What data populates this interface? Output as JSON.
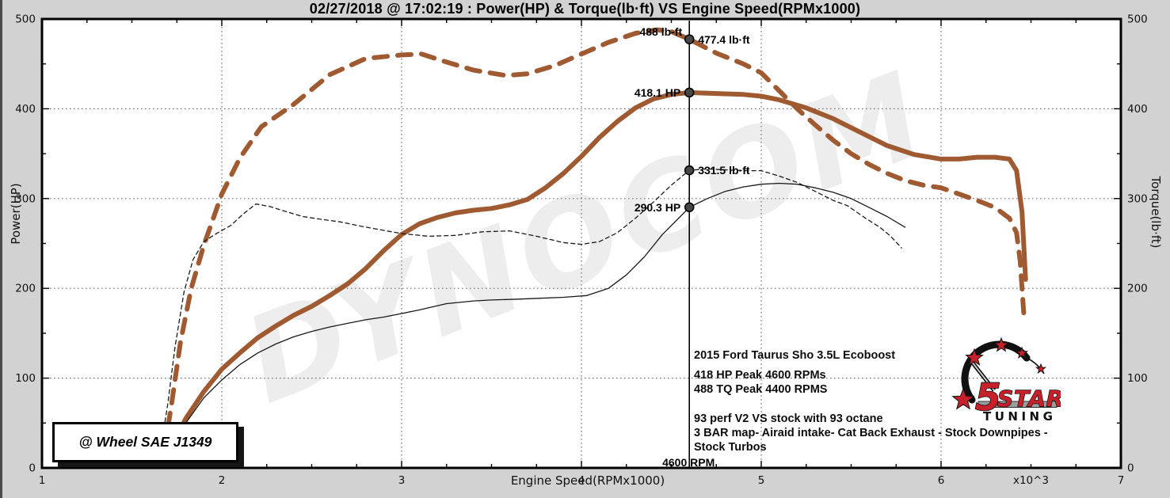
{
  "header": {
    "title": "02/27/2018 @ 17:02:19 : Power(HP) & Torque(lb·ft) VS Engine Speed(RPMx1000)"
  },
  "watermark": {
    "text": "DYNOCOM"
  },
  "wheel_box": {
    "label": "@ Wheel SAE J1349"
  },
  "info_block": {
    "lines": [
      "2015 Ford Taurus Sho 3.5L Ecoboost",
      "418 HP Peak  4600 RPMs",
      "488 TQ Peak  4400 RPMS",
      "93 perf V2  VS stock with 93 octane",
      "3 BAR map- Airaid intake- Cat Back Exhaust - Stock Downpipes -",
      "Stock Turbos"
    ]
  },
  "logo": {
    "digit": "5",
    "star_word": "STAR",
    "tuning": "TUNING",
    "red": "#c8202a"
  },
  "colors": {
    "tuned": "#a05a32",
    "stock": "#1a1a1a",
    "background": "#d2d2d2",
    "plot_bg": "#ffffff"
  },
  "chart_data": {
    "type": "line",
    "title": "02/27/2018 @ 17:02:19 : Power(HP) & Torque(lb·ft) VS Engine Speed(RPMx1000)",
    "xlabel": "Engine Speed(RPMx1000)",
    "ylabel_left": "Power(HP)",
    "ylabel_right": "Torque(lb·ft)",
    "xlim": [
      1,
      7
    ],
    "ylim": [
      0,
      500
    ],
    "x_ticks": [
      1,
      2,
      3,
      4,
      5,
      6,
      7
    ],
    "x_scale_note": "x10^3",
    "y_ticks": [
      0,
      100,
      200,
      300,
      400,
      500
    ],
    "x_grid": [
      2,
      3,
      4,
      5,
      6
    ],
    "y_grid": [
      100,
      200,
      300,
      400
    ],
    "grid": "dotted",
    "legend_position": "none",
    "cursor_rpm": 4.6,
    "series": [
      {
        "name": "tuned-torque-lbft",
        "style": "dashed",
        "color": "#a05a32",
        "width": 6,
        "x": [
          1.68,
          1.72,
          1.77,
          1.83,
          1.9,
          2.0,
          2.1,
          2.22,
          2.4,
          2.6,
          2.8,
          3.0,
          3.11,
          3.25,
          3.4,
          3.58,
          3.7,
          3.85,
          4.0,
          4.15,
          4.3,
          4.42,
          4.5,
          4.6,
          4.75,
          4.9,
          5.0,
          5.1,
          5.2,
          5.3,
          5.4,
          5.5,
          5.6,
          5.7,
          5.8,
          5.9,
          6.0,
          6.1,
          6.2,
          6.3,
          6.38,
          6.42,
          6.44,
          6.46
        ],
        "y": [
          20,
          70,
          140,
          200,
          248,
          305,
          345,
          380,
          405,
          438,
          456,
          460,
          461,
          452,
          443,
          437,
          439,
          448,
          461,
          474,
          484,
          488,
          486,
          477.4,
          462,
          450,
          440,
          420,
          400,
          382,
          365,
          350,
          338,
          328,
          320,
          315,
          312,
          305,
          298,
          290,
          278,
          262,
          230,
          172
        ]
      },
      {
        "name": "tuned-power-hp",
        "style": "solid",
        "color": "#a05a32",
        "width": 6,
        "x": [
          1.73,
          1.8,
          1.9,
          2.0,
          2.1,
          2.2,
          2.3,
          2.4,
          2.5,
          2.6,
          2.7,
          2.8,
          2.9,
          3.0,
          3.1,
          3.2,
          3.3,
          3.4,
          3.5,
          3.6,
          3.7,
          3.8,
          3.9,
          4.0,
          4.1,
          4.2,
          4.3,
          4.4,
          4.5,
          4.6,
          4.75,
          4.9,
          5.0,
          5.1,
          5.25,
          5.4,
          5.55,
          5.7,
          5.85,
          6.0,
          6.1,
          6.2,
          6.3,
          6.38,
          6.42,
          6.45,
          6.47
        ],
        "y": [
          28,
          55,
          85,
          110,
          128,
          145,
          158,
          170,
          180,
          192,
          205,
          222,
          242,
          260,
          272,
          279,
          284,
          287,
          289,
          293,
          299,
          312,
          328,
          347,
          368,
          386,
          401,
          411,
          416,
          418.1,
          417,
          416,
          414,
          410,
          401,
          389,
          374,
          359,
          349,
          344,
          344,
          346,
          346,
          344,
          331,
          285,
          210
        ]
      },
      {
        "name": "stock-torque-lbft",
        "style": "dashed",
        "color": "#1a1a1a",
        "width": 1.3,
        "x": [
          1.66,
          1.7,
          1.74,
          1.79,
          1.84,
          1.9,
          1.97,
          2.05,
          2.12,
          2.19,
          2.27,
          2.35,
          2.45,
          2.55,
          2.66,
          2.78,
          2.89,
          3.0,
          3.15,
          3.3,
          3.45,
          3.6,
          3.75,
          3.9,
          4.0,
          4.1,
          4.2,
          4.3,
          4.4,
          4.5,
          4.6,
          4.7,
          4.8,
          4.9,
          5.0,
          5.1,
          5.2,
          5.3,
          5.4,
          5.48,
          5.58,
          5.66,
          5.72,
          5.78
        ],
        "y": [
          20,
          72,
          135,
          196,
          232,
          252,
          261,
          270,
          283,
          294,
          291,
          286,
          280,
          277,
          274,
          269,
          265,
          261,
          258,
          259,
          263,
          264,
          258,
          251,
          249,
          252,
          262,
          278,
          296,
          315,
          331.5,
          333,
          332,
          331,
          331,
          325,
          318,
          308,
          298,
          292,
          278,
          268,
          258,
          245
        ]
      },
      {
        "name": "stock-power-hp",
        "style": "solid",
        "color": "#1a1a1a",
        "width": 1.3,
        "x": [
          1.74,
          1.8,
          1.9,
          2.0,
          2.1,
          2.2,
          2.3,
          2.4,
          2.5,
          2.6,
          2.7,
          2.8,
          2.9,
          3.0,
          3.1,
          3.25,
          3.4,
          3.5,
          3.65,
          3.77,
          3.9,
          4.03,
          4.15,
          4.25,
          4.35,
          4.45,
          4.55,
          4.6,
          4.7,
          4.8,
          4.9,
          5.0,
          5.1,
          5.2,
          5.3,
          5.4,
          5.5,
          5.6,
          5.7,
          5.8
        ],
        "y": [
          26,
          50,
          78,
          98,
          115,
          128,
          138,
          146,
          152,
          157,
          161,
          165,
          168,
          172,
          176,
          183,
          186,
          187,
          188,
          189,
          190,
          192,
          200,
          215,
          235,
          260,
          280,
          290.3,
          300,
          308,
          313,
          316,
          317,
          316,
          312,
          307,
          300,
          290,
          280,
          268
        ]
      }
    ],
    "annotations": [
      {
        "label": "488 lb-ft",
        "x": 4.42,
        "v": 488,
        "anchor": "above"
      },
      {
        "label": "477.4 lb·ft",
        "x": 4.6,
        "v": 477.4,
        "anchor": "right-of-cursor",
        "marker": true
      },
      {
        "label": "418.1 HP",
        "x": 4.6,
        "v": 418.1,
        "anchor": "left-of-cursor",
        "marker": true
      },
      {
        "label": "331.5 lb·ft",
        "x": 4.6,
        "v": 331.5,
        "anchor": "right-of-cursor",
        "marker": true
      },
      {
        "label": "290.3 HP",
        "x": 4.6,
        "v": 290.3,
        "anchor": "left-of-cursor",
        "marker": true
      },
      {
        "label": "4600 RPM",
        "x": 4.6,
        "v": 0,
        "anchor": "cursor-bottom"
      }
    ]
  }
}
